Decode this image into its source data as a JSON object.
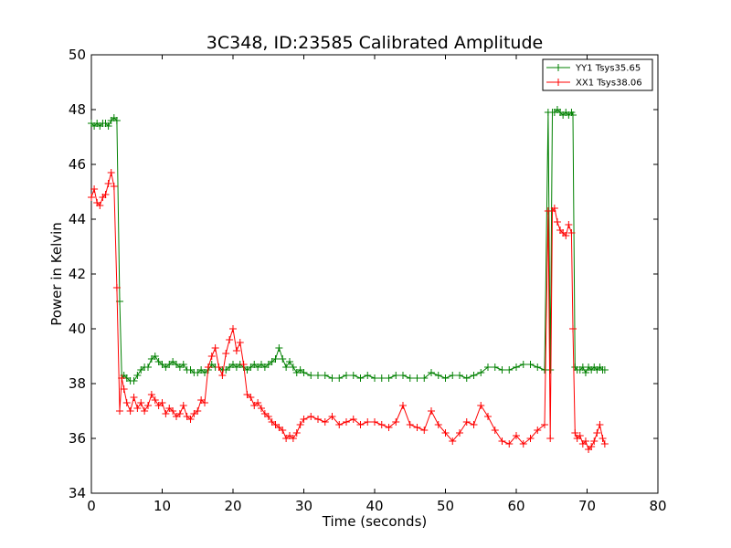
{
  "chart_data": {
    "type": "line",
    "title": "3C348, ID:23585 Calibrated Amplitude",
    "xlabel": "Time (seconds)",
    "ylabel": "Power in Kelvin",
    "xlim": [
      0,
      80
    ],
    "ylim": [
      34,
      50
    ],
    "xticks": [
      "0",
      "10",
      "20",
      "30",
      "40",
      "50",
      "60",
      "70",
      "80"
    ],
    "yticks": [
      "34",
      "36",
      "38",
      "40",
      "42",
      "44",
      "46",
      "48",
      "50"
    ],
    "grid": false,
    "legend_position": "top-right",
    "marker": "plus",
    "series": [
      {
        "name": "YY1 Tsys35.65",
        "color": "#008000",
        "x": [
          0.0,
          0.4,
          0.8,
          1.2,
          1.6,
          2.0,
          2.4,
          2.8,
          3.2,
          3.6,
          4.0,
          4.3,
          4.6,
          5.0,
          5.5,
          6.0,
          6.5,
          7.0,
          7.5,
          8.0,
          8.5,
          9.0,
          9.5,
          10.0,
          10.5,
          11.0,
          11.5,
          12.0,
          12.5,
          13.0,
          13.5,
          14.0,
          14.5,
          15.0,
          15.5,
          16.0,
          16.5,
          17.0,
          17.5,
          18.0,
          18.5,
          19.0,
          19.5,
          20.0,
          20.5,
          21.0,
          21.5,
          22.0,
          22.5,
          23.0,
          23.5,
          24.0,
          24.5,
          25.0,
          25.5,
          26.0,
          26.5,
          27.0,
          27.5,
          28.0,
          28.5,
          29.0,
          29.5,
          30.0,
          31.0,
          32.0,
          33.0,
          34.0,
          35.0,
          36.0,
          37.0,
          38.0,
          39.0,
          40.0,
          41.0,
          42.0,
          43.0,
          44.0,
          45.0,
          46.0,
          47.0,
          48.0,
          49.0,
          50.0,
          51.0,
          52.0,
          53.0,
          54.0,
          55.0,
          56.0,
          57.0,
          58.0,
          59.0,
          60.0,
          61.0,
          62.0,
          63.0,
          64.0,
          64.5,
          64.8,
          65.1,
          65.4,
          65.8,
          66.2,
          66.6,
          67.0,
          67.4,
          67.8,
          68.0,
          68.3,
          68.6,
          69.0,
          69.4,
          69.8,
          70.2,
          70.6,
          71.0,
          71.4,
          71.8,
          72.2,
          72.5
        ],
        "y": [
          47.5,
          47.4,
          47.5,
          47.4,
          47.5,
          47.5,
          47.4,
          47.6,
          47.7,
          47.6,
          41.0,
          38.2,
          38.3,
          38.2,
          38.1,
          38.1,
          38.3,
          38.5,
          38.6,
          38.6,
          38.9,
          39.0,
          38.8,
          38.7,
          38.6,
          38.7,
          38.8,
          38.7,
          38.6,
          38.7,
          38.5,
          38.5,
          38.4,
          38.4,
          38.5,
          38.4,
          38.5,
          38.7,
          38.6,
          38.6,
          38.5,
          38.5,
          38.6,
          38.7,
          38.6,
          38.7,
          38.6,
          38.5,
          38.6,
          38.7,
          38.6,
          38.7,
          38.6,
          38.7,
          38.8,
          38.9,
          39.3,
          38.9,
          38.6,
          38.8,
          38.6,
          38.4,
          38.5,
          38.4,
          38.3,
          38.3,
          38.3,
          38.2,
          38.2,
          38.3,
          38.3,
          38.2,
          38.3,
          38.2,
          38.2,
          38.2,
          38.3,
          38.3,
          38.2,
          38.2,
          38.2,
          38.4,
          38.3,
          38.2,
          38.3,
          38.3,
          38.2,
          38.3,
          38.4,
          38.6,
          38.6,
          38.5,
          38.5,
          38.6,
          38.7,
          38.7,
          38.6,
          38.5,
          47.9,
          38.5,
          47.9,
          47.9,
          48.0,
          47.9,
          47.8,
          47.9,
          47.8,
          47.9,
          47.8,
          38.6,
          38.5,
          38.5,
          38.6,
          38.4,
          38.6,
          38.5,
          38.6,
          38.5,
          38.6,
          38.5,
          38.5
        ],
        "line_width": 1
      },
      {
        "name": "XX1 Tsys38.06",
        "color": "#ff0000",
        "x": [
          0.0,
          0.4,
          0.8,
          1.2,
          1.6,
          2.0,
          2.4,
          2.8,
          3.2,
          3.6,
          4.0,
          4.3,
          4.6,
          5.0,
          5.5,
          6.0,
          6.5,
          7.0,
          7.5,
          8.0,
          8.5,
          9.0,
          9.5,
          10.0,
          10.5,
          11.0,
          11.5,
          12.0,
          12.5,
          13.0,
          13.5,
          14.0,
          14.5,
          15.0,
          15.5,
          16.0,
          16.5,
          17.0,
          17.5,
          18.0,
          18.5,
          19.0,
          19.5,
          20.0,
          20.5,
          21.0,
          21.5,
          22.0,
          22.5,
          23.0,
          23.5,
          24.0,
          24.5,
          25.0,
          25.5,
          26.0,
          26.5,
          27.0,
          27.5,
          28.0,
          28.5,
          29.0,
          29.5,
          30.0,
          31.0,
          32.0,
          33.0,
          34.0,
          35.0,
          36.0,
          37.0,
          38.0,
          39.0,
          40.0,
          41.0,
          42.0,
          43.0,
          44.0,
          45.0,
          46.0,
          47.0,
          48.0,
          49.0,
          50.0,
          51.0,
          52.0,
          53.0,
          54.0,
          55.0,
          56.0,
          57.0,
          58.0,
          59.0,
          60.0,
          61.0,
          62.0,
          63.0,
          64.0,
          64.5,
          64.8,
          65.1,
          65.4,
          65.8,
          66.2,
          66.6,
          67.0,
          67.4,
          67.8,
          68.0,
          68.3,
          68.6,
          69.0,
          69.4,
          69.8,
          70.2,
          70.6,
          71.0,
          71.4,
          71.8,
          72.2,
          72.5
        ],
        "y": [
          44.8,
          45.1,
          44.6,
          44.5,
          44.8,
          44.9,
          45.3,
          45.7,
          45.2,
          41.5,
          37.0,
          38.2,
          37.8,
          37.3,
          37.0,
          37.5,
          37.1,
          37.3,
          37.0,
          37.2,
          37.6,
          37.4,
          37.2,
          37.3,
          36.9,
          37.1,
          37.0,
          36.8,
          36.9,
          37.2,
          36.8,
          36.7,
          36.9,
          37.0,
          37.4,
          37.3,
          38.6,
          39.0,
          39.3,
          38.6,
          38.3,
          39.1,
          39.6,
          40.0,
          39.2,
          39.5,
          38.7,
          37.6,
          37.5,
          37.2,
          37.3,
          37.1,
          36.9,
          36.8,
          36.6,
          36.5,
          36.4,
          36.3,
          36.0,
          36.1,
          36.0,
          36.2,
          36.5,
          36.7,
          36.8,
          36.7,
          36.6,
          36.8,
          36.5,
          36.6,
          36.7,
          36.5,
          36.6,
          36.6,
          36.5,
          36.4,
          36.6,
          37.2,
          36.5,
          36.4,
          36.3,
          37.0,
          36.5,
          36.2,
          35.9,
          36.2,
          36.6,
          36.5,
          37.2,
          36.8,
          36.3,
          35.9,
          35.8,
          36.1,
          35.8,
          36.0,
          36.3,
          36.5,
          44.3,
          36.0,
          44.3,
          44.4,
          43.9,
          43.6,
          43.5,
          43.4,
          43.8,
          43.5,
          40.0,
          36.2,
          36.0,
          36.1,
          35.8,
          35.9,
          35.6,
          35.7,
          35.9,
          36.2,
          36.5,
          36.0,
          35.8
        ],
        "line_width": 1
      }
    ]
  }
}
